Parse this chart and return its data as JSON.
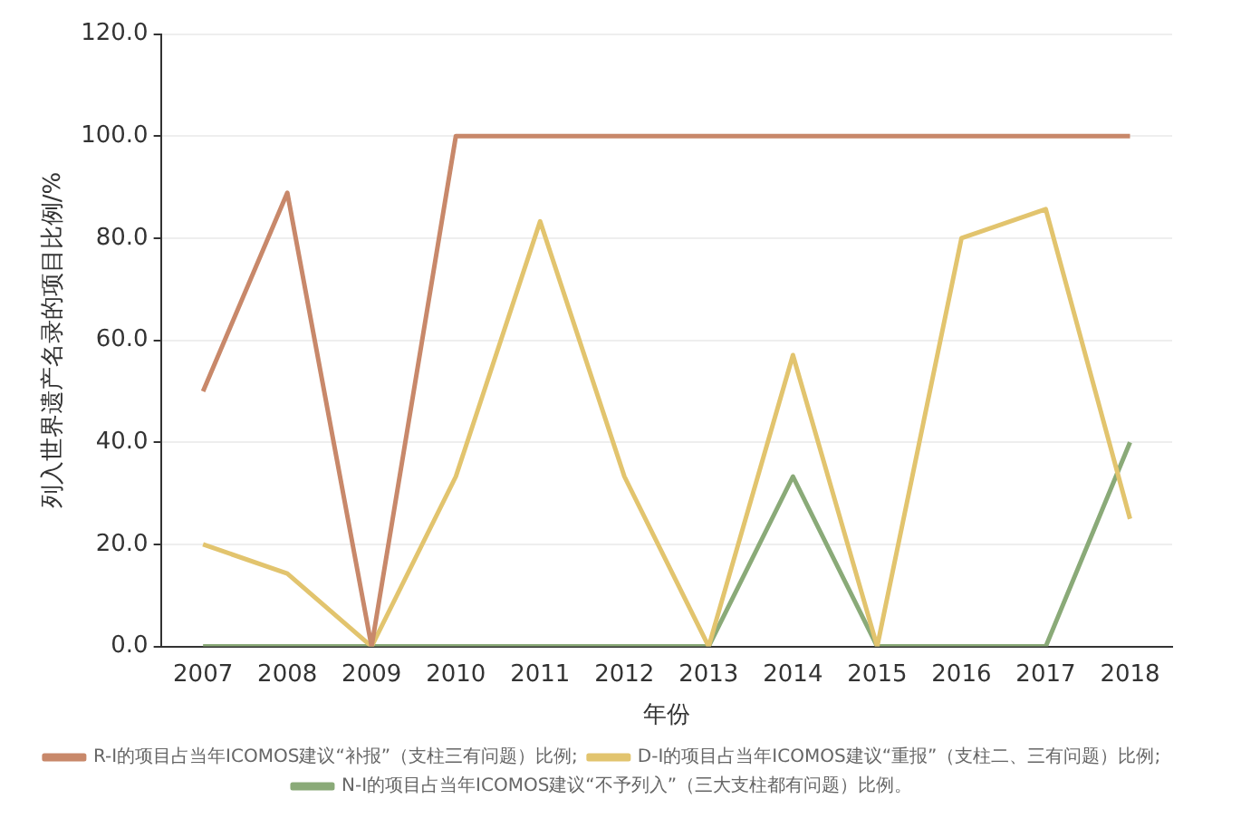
{
  "chart_data": {
    "type": "line",
    "xlabel": "年份",
    "ylabel": "列入世界遗产名录的项目比例/%",
    "categories": [
      "2007",
      "2008",
      "2009",
      "2010",
      "2011",
      "2012",
      "2013",
      "2014",
      "2015",
      "2016",
      "2017",
      "2018"
    ],
    "series": [
      {
        "name": "R-I的项目占当年ICOMOS建议“补报”（支柱三有问题）比例;",
        "color": "#c8886a",
        "values": [
          50,
          88.9,
          0,
          100,
          100,
          100,
          100,
          100,
          100,
          100,
          100,
          100
        ]
      },
      {
        "name": "D-I的项目占当年ICOMOS建议“重报”（支柱二、三有问题）比例;",
        "color": "#e2c46e",
        "values": [
          20,
          14.3,
          0,
          33.3,
          83.3,
          33.3,
          0,
          57.1,
          0,
          80,
          85.7,
          25
        ]
      },
      {
        "name": "N-I的项目占当年ICOMOS建议“不予列入”（三大支柱都有问题）比例。",
        "color": "#8aaa78",
        "values": [
          0,
          0,
          0,
          0,
          0,
          0,
          0,
          33.3,
          0,
          0,
          0,
          40
        ]
      }
    ],
    "ylim": [
      0,
      120
    ],
    "yticks": [
      {
        "value": 0,
        "label": "0.0"
      },
      {
        "value": 20,
        "label": "20.0"
      },
      {
        "value": 40,
        "label": "40.0"
      },
      {
        "value": 60,
        "label": "60.0"
      },
      {
        "value": 80,
        "label": "80.0"
      },
      {
        "value": 100,
        "label": "100.0"
      },
      {
        "value": 120,
        "label": "120.0"
      }
    ],
    "grid": "y",
    "legend": "bottom",
    "marker": "none",
    "line_style": "solid"
  }
}
